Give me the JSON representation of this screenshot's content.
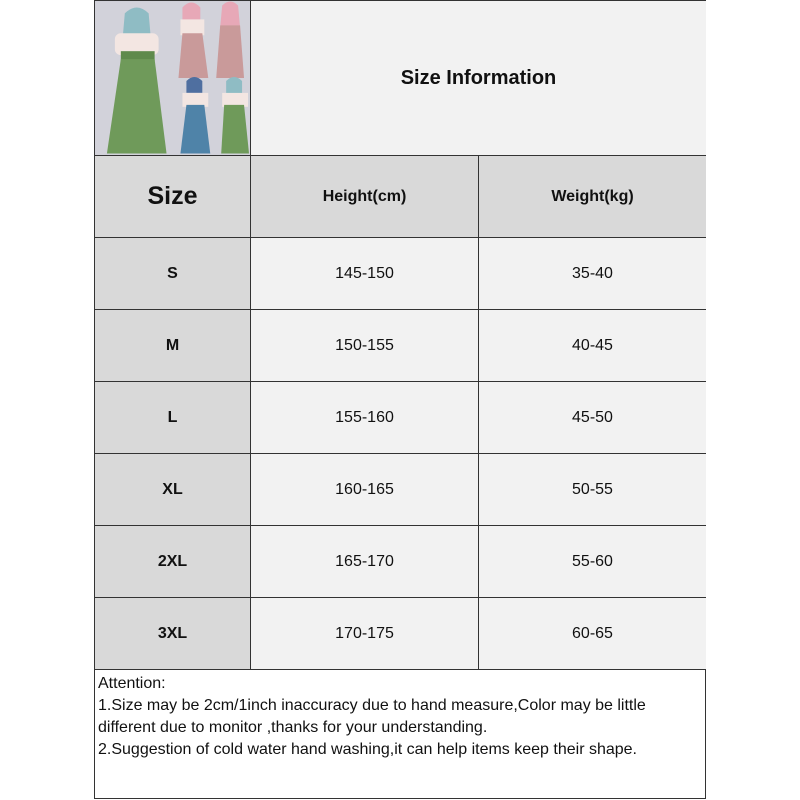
{
  "title": "Size Information",
  "headers": {
    "size": "Size",
    "height": "Height(cm)",
    "weight": "Weight(kg)"
  },
  "rows": [
    {
      "size": "S",
      "height": "145-150",
      "weight": "35-40"
    },
    {
      "size": "M",
      "height": "150-155",
      "weight": "40-45"
    },
    {
      "size": "L",
      "height": "155-160",
      "weight": "45-50"
    },
    {
      "size": "XL",
      "height": "160-165",
      "weight": "50-55"
    },
    {
      "size": "2XL",
      "height": "165-170",
      "weight": "55-60"
    },
    {
      "size": "3XL",
      "height": "170-175",
      "weight": "60-65"
    }
  ],
  "notes": {
    "heading": "Attention:",
    "lines": [
      "1.Size may be 2cm/1inch inaccuracy due to hand measure,Color may be little different due to monitor ,thanks for your understanding.",
      "2.Suggestion of cold water hand washing,it can help items keep their shape."
    ]
  },
  "colors": {
    "header_bg": "#d9d9d9",
    "cell_bg": "#f2f2f2",
    "skirt_green": "#6f9a5a",
    "skirt_pink": "#c99a9a",
    "skirt_blue": "#4f83a8"
  }
}
